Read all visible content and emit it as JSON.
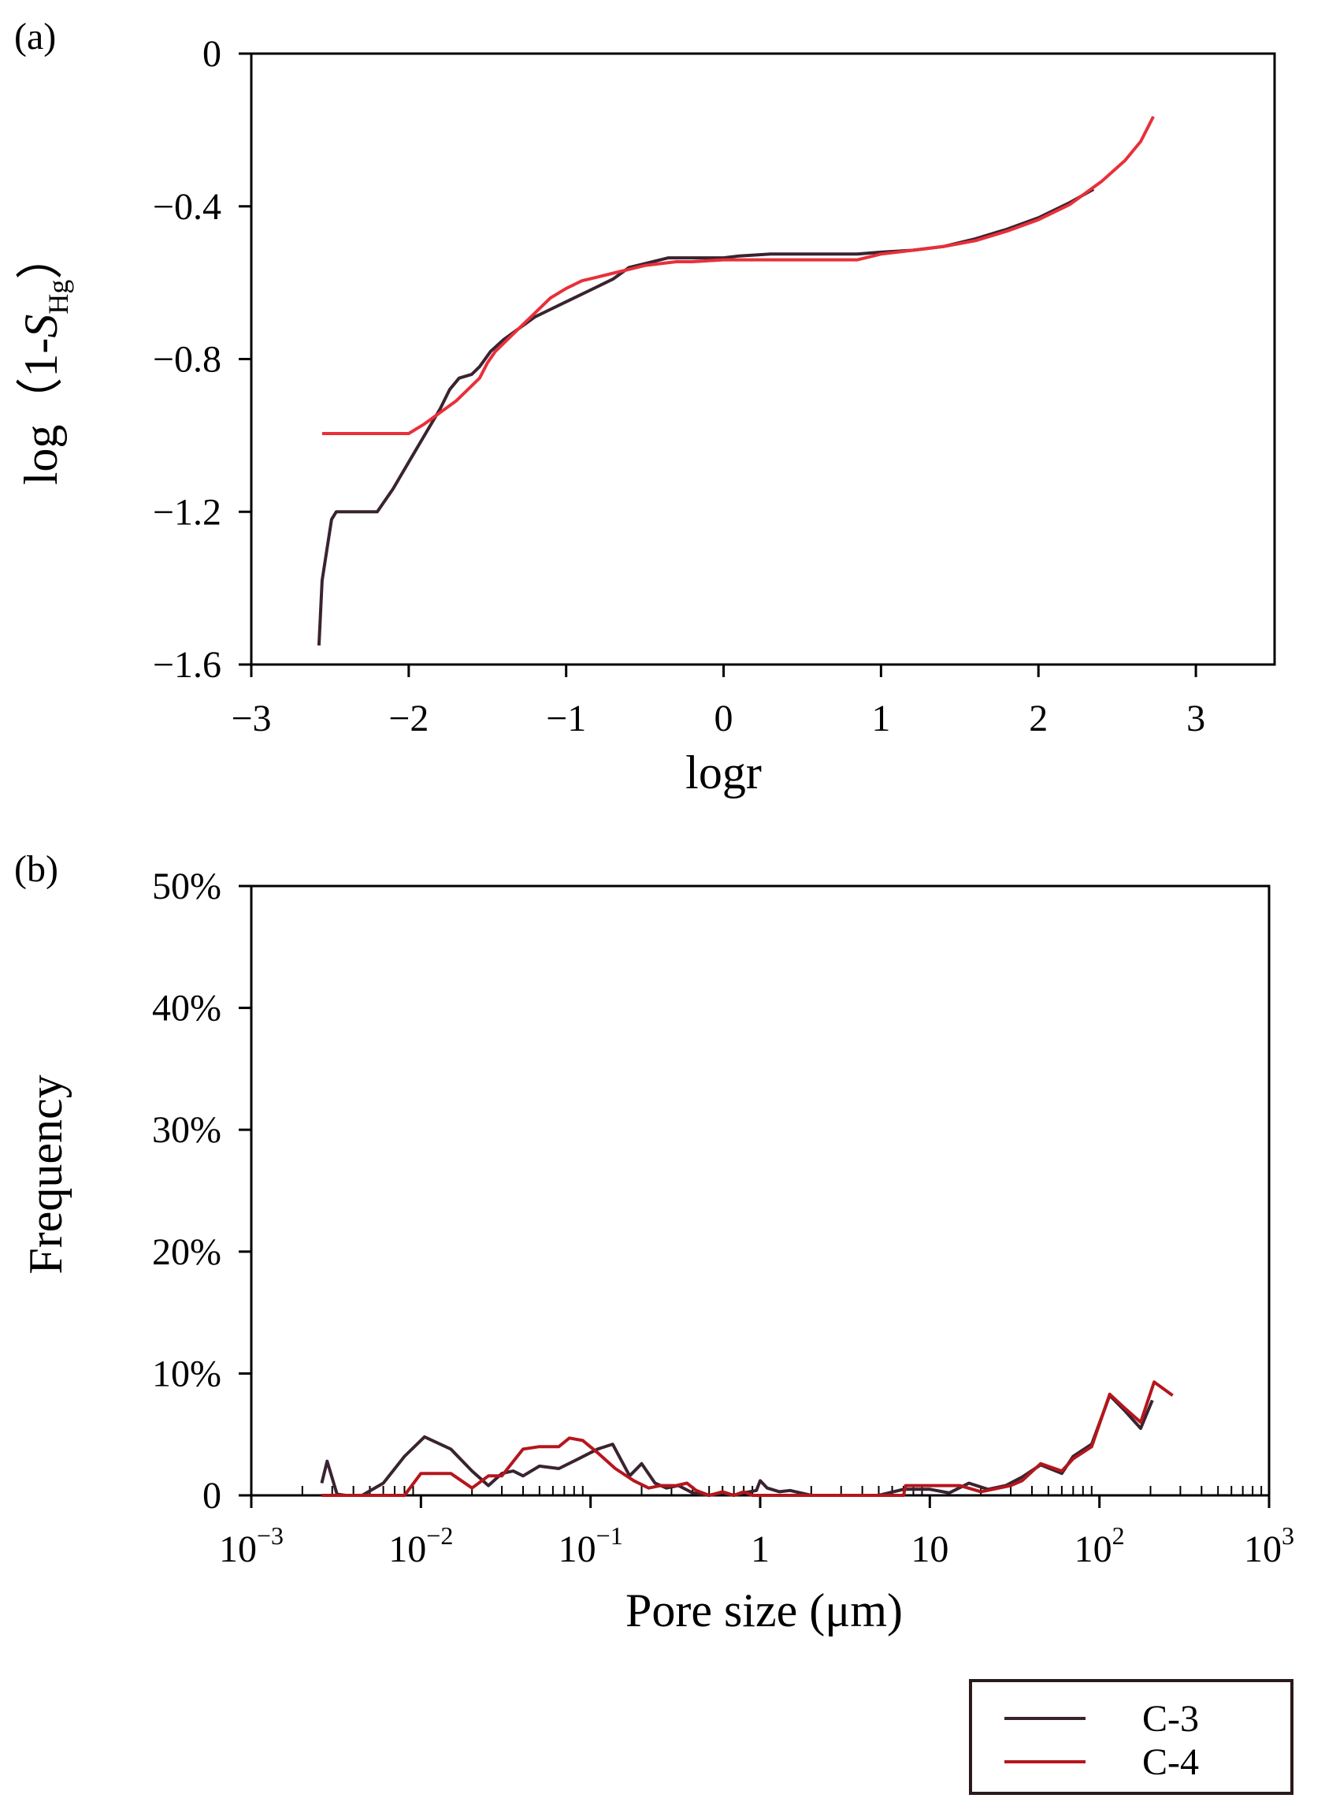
{
  "chart_data": [
    {
      "type": "line",
      "panel_label": "(a)",
      "xlabel": "logr",
      "ylabel": {
        "prefix": "log（1-",
        "symbol": "S",
        "subscript": "Hg",
        "suffix": "）"
      },
      "xlim": [
        -3,
        3.5
      ],
      "ylim": [
        -1.6,
        0
      ],
      "xticks": [
        -3,
        -2,
        -1,
        0,
        1,
        2,
        3
      ],
      "xtick_labels": [
        "−3",
        "−2",
        "−1",
        "0",
        "1",
        "2",
        "3"
      ],
      "yticks": [
        0,
        -0.4,
        -0.8,
        -1.2,
        -1.6
      ],
      "ytick_labels": [
        "0",
        "−0.4",
        "−0.8",
        "−1.2",
        "−1.6"
      ],
      "grid": false,
      "series": [
        {
          "name": "C-3",
          "color": "#3a2330",
          "x": [
            -2.57,
            -2.55,
            -2.52,
            -2.49,
            -2.46,
            -2.4,
            -2.3,
            -2.2,
            -2.1,
            -2.0,
            -1.9,
            -1.8,
            -1.74,
            -1.68,
            -1.6,
            -1.55,
            -1.48,
            -1.4,
            -1.3,
            -1.2,
            -1.1,
            -1.0,
            -0.9,
            -0.8,
            -0.7,
            -0.6,
            -0.5,
            -0.35,
            -0.2,
            0.0,
            0.1,
            0.3,
            0.5,
            0.7,
            0.85,
            1.0,
            1.2,
            1.4,
            1.6,
            1.8,
            2.0,
            2.2,
            2.35
          ],
          "y": [
            -1.55,
            -1.38,
            -1.3,
            -1.22,
            -1.2,
            -1.2,
            -1.2,
            -1.2,
            -1.14,
            -1.07,
            -1.0,
            -0.93,
            -0.88,
            -0.85,
            -0.84,
            -0.82,
            -0.78,
            -0.75,
            -0.72,
            -0.69,
            -0.67,
            -0.65,
            -0.63,
            -0.61,
            -0.59,
            -0.56,
            -0.55,
            -0.535,
            -0.535,
            -0.535,
            -0.53,
            -0.525,
            -0.525,
            -0.525,
            -0.525,
            -0.52,
            -0.515,
            -0.505,
            -0.485,
            -0.46,
            -0.43,
            -0.39,
            -0.355
          ]
        },
        {
          "name": "C-4",
          "color": "#e8303a",
          "x": [
            -2.55,
            -2.4,
            -2.2,
            -2.0,
            -1.9,
            -1.8,
            -1.7,
            -1.6,
            -1.55,
            -1.5,
            -1.45,
            -1.4,
            -1.3,
            -1.2,
            -1.1,
            -1.0,
            -0.9,
            -0.8,
            -0.7,
            -0.6,
            -0.5,
            -0.4,
            -0.3,
            -0.2,
            0.0,
            0.2,
            0.5,
            0.85,
            1.0,
            1.2,
            1.4,
            1.6,
            1.8,
            2.0,
            2.2,
            2.4,
            2.55,
            2.65,
            2.73
          ],
          "y": [
            -0.995,
            -0.995,
            -0.995,
            -0.995,
            -0.97,
            -0.94,
            -0.91,
            -0.87,
            -0.85,
            -0.81,
            -0.78,
            -0.76,
            -0.72,
            -0.68,
            -0.64,
            -0.615,
            -0.595,
            -0.585,
            -0.575,
            -0.565,
            -0.555,
            -0.55,
            -0.545,
            -0.545,
            -0.54,
            -0.54,
            -0.54,
            -0.54,
            -0.525,
            -0.515,
            -0.505,
            -0.49,
            -0.465,
            -0.435,
            -0.395,
            -0.335,
            -0.28,
            -0.23,
            -0.165
          ]
        }
      ]
    },
    {
      "type": "line",
      "panel_label": "(b)",
      "xlabel": "Pore size (μm)",
      "ylabel": "Frequency",
      "xscale": "log",
      "xlim": [
        0.001,
        1000
      ],
      "ylim": [
        0,
        50
      ],
      "xticks": [
        {
          "value": 0.001,
          "base": "10",
          "exp": "−3"
        },
        {
          "value": 0.01,
          "base": "10",
          "exp": "−2"
        },
        {
          "value": 0.1,
          "base": "10",
          "exp": "−1"
        },
        {
          "value": 1,
          "base": "1",
          "exp": ""
        },
        {
          "value": 10,
          "base": "10",
          "exp": ""
        },
        {
          "value": 100,
          "base": "10",
          "exp": "2"
        },
        {
          "value": 1000,
          "base": "10",
          "exp": "3"
        }
      ],
      "yticks": [
        0,
        10,
        20,
        30,
        40,
        50
      ],
      "ytick_labels": [
        "0",
        "10%",
        "20%",
        "30%",
        "40%",
        "50%"
      ],
      "grid": false,
      "legend": {
        "position": "bottom-right",
        "entries": [
          "C-3",
          "C-4"
        ]
      },
      "series": [
        {
          "name": "C-3",
          "color": "#3a2330",
          "x": [
            0.0026,
            0.0028,
            0.0032,
            0.0036,
            0.0045,
            0.006,
            0.008,
            0.0105,
            0.015,
            0.02,
            0.025,
            0.03,
            0.035,
            0.04,
            0.05,
            0.065,
            0.085,
            0.11,
            0.135,
            0.17,
            0.2,
            0.24,
            0.28,
            0.33,
            0.4,
            0.5,
            0.6,
            0.7,
            0.8,
            0.95,
            1.0,
            1.1,
            1.3,
            1.5,
            2.0,
            3.0,
            5.0,
            7.0,
            10.0,
            13.0,
            17.0,
            22.0,
            28.0,
            35.0,
            45.0,
            60.0,
            70.0,
            90.0,
            115.0,
            140.0,
            175.0,
            205.0
          ],
          "y": [
            1.0,
            2.8,
            0.1,
            0.0,
            0.0,
            1.0,
            3.2,
            4.8,
            3.8,
            2.0,
            0.8,
            1.8,
            2.0,
            1.6,
            2.4,
            2.2,
            3.0,
            3.8,
            4.2,
            1.6,
            2.6,
            1.0,
            0.6,
            0.8,
            0.2,
            0.0,
            0.2,
            0.0,
            0.2,
            0.4,
            1.2,
            0.6,
            0.3,
            0.4,
            0.0,
            0.0,
            0.0,
            0.5,
            0.5,
            0.2,
            1.0,
            0.5,
            0.8,
            1.5,
            2.5,
            1.8,
            3.2,
            4.2,
            8.2,
            7.0,
            5.5,
            7.8
          ]
        },
        {
          "name": "C-4",
          "color": "#b5161c",
          "x": [
            0.0026,
            0.003,
            0.004,
            0.006,
            0.008,
            0.01,
            0.015,
            0.02,
            0.025,
            0.03,
            0.04,
            0.05,
            0.065,
            0.075,
            0.09,
            0.11,
            0.14,
            0.18,
            0.22,
            0.26,
            0.32,
            0.37,
            0.42,
            0.5,
            0.6,
            0.7,
            0.8,
            0.9,
            1.1,
            1.4,
            2.0,
            3.0,
            5.0,
            7.0,
            7.2,
            10.0,
            15.0,
            20.0,
            30.0,
            35.0,
            45.0,
            60.0,
            70.0,
            90.0,
            115.0,
            140.0,
            175.0,
            210.0,
            270.0
          ],
          "y": [
            0.0,
            0.0,
            0.0,
            0.0,
            0.0,
            1.8,
            1.8,
            0.6,
            1.6,
            1.6,
            3.8,
            4.0,
            4.0,
            4.7,
            4.5,
            3.5,
            2.2,
            1.2,
            0.6,
            0.8,
            0.8,
            1.0,
            0.4,
            0.0,
            0.3,
            0.0,
            0.3,
            0.0,
            0.0,
            0.0,
            0.0,
            0.0,
            0.0,
            0.0,
            0.8,
            0.8,
            0.8,
            0.3,
            0.8,
            1.2,
            2.6,
            2.0,
            3.0,
            4.0,
            8.3,
            7.2,
            6.0,
            9.3,
            8.2
          ]
        }
      ]
    }
  ]
}
